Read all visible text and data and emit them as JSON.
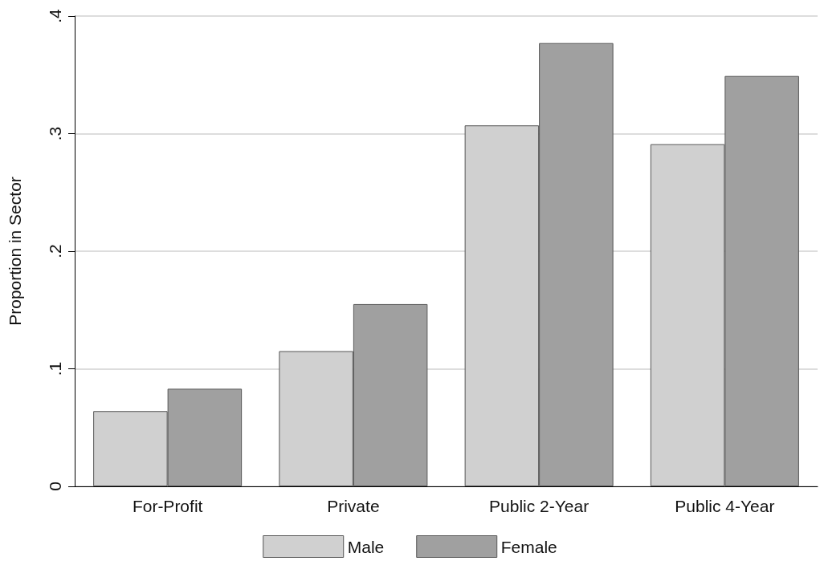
{
  "chart_data": {
    "type": "bar",
    "ylabel": "Proportion in Sector",
    "categories": [
      "For-Profit",
      "Private",
      "Public 2-Year",
      "Public 4-Year"
    ],
    "series": [
      {
        "name": "Male",
        "color": "#d0d0d0",
        "values": [
          0.064,
          0.115,
          0.307,
          0.291
        ]
      },
      {
        "name": "Female",
        "color": "#a0a0a0",
        "values": [
          0.083,
          0.155,
          0.377,
          0.349
        ]
      }
    ],
    "ylim": [
      0,
      0.4
    ],
    "yticks": [
      0,
      {
        "value": 0.1,
        "label": ".1"
      },
      {
        "value": 0.2,
        "label": ".2"
      },
      {
        "value": 0.3,
        "label": ".3"
      },
      {
        "value": 0.4,
        "label": ".4"
      }
    ],
    "grid": "y",
    "legend": "bottom"
  }
}
